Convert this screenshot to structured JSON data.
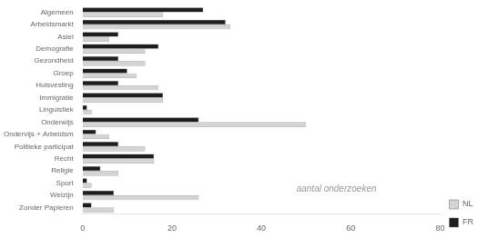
{
  "chart_data": {
    "type": "bar",
    "orientation": "horizontal",
    "categories": [
      "Algemeen",
      "Arbeidsmarkt",
      "Asiel",
      "Demografie",
      "Gezondheid",
      "Groep",
      "Huisvesting",
      "Immigratie",
      "Linguistiek",
      "Onderwijs",
      "Ondervijs + Arbeidsm",
      "Politieke participat",
      "Recht",
      "Religie",
      "Sport",
      "Welzijn",
      "Zonder Papieren"
    ],
    "series": [
      {
        "name": "FR",
        "color": "#1e1e1e",
        "values": [
          27,
          32,
          8,
          17,
          8,
          10,
          8,
          18,
          1,
          26,
          3,
          8,
          16,
          4,
          1,
          7,
          2
        ]
      },
      {
        "name": "NL",
        "color": "#d4d4d4",
        "values": [
          18,
          33,
          6,
          14,
          14,
          12,
          17,
          18,
          2,
          50,
          6,
          14,
          16,
          8,
          2,
          26,
          7
        ]
      }
    ],
    "xlim": [
      0,
      80
    ],
    "xticks": [
      0,
      20,
      40,
      60,
      80
    ],
    "grid": false,
    "legend": "lower right",
    "annotations": [
      "aantal onderzoeken"
    ]
  }
}
